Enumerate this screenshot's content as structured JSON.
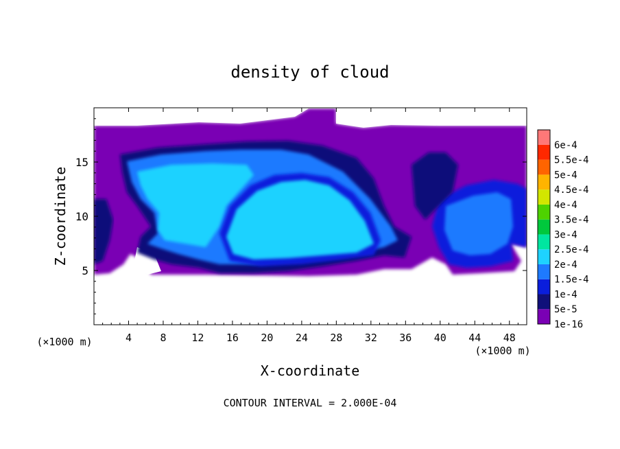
{
  "chart_data": {
    "type": "heatmap",
    "title": "density of cloud",
    "xlabel": "X-coordinate",
    "ylabel": "Z-coordinate",
    "x_unit_label_left": "(×1000 m)",
    "x_unit_label_right": "(×1000 m)",
    "xlim": [
      0,
      50
    ],
    "ylim": [
      0,
      20
    ],
    "x_ticks": [
      4,
      8,
      12,
      16,
      20,
      24,
      28,
      32,
      36,
      40,
      44,
      48
    ],
    "y_ticks": [
      5,
      10,
      15
    ],
    "footer": "CONTOUR INTERVAL = 2.000E-04",
    "colorbar": {
      "levels": [
        {
          "label": "1e-16",
          "color": "#7a00b4"
        },
        {
          "label": "5e-5",
          "color": "#10107a"
        },
        {
          "label": "1e-4",
          "color": "#0a1edc"
        },
        {
          "label": "1.5e-4",
          "color": "#1e7aff"
        },
        {
          "label": "2e-4",
          "color": "#1ed2ff"
        },
        {
          "label": "2.5e-4",
          "color": "#00e6a0"
        },
        {
          "label": "3e-4",
          "color": "#00c83c"
        },
        {
          "label": "3.5e-4",
          "color": "#4ed200"
        },
        {
          "label": "4e-4",
          "color": "#d2e600"
        },
        {
          "label": "4.5e-4",
          "color": "#ffb400"
        },
        {
          "label": "5e-4",
          "color": "#ff6400"
        },
        {
          "label": "5.5e-4",
          "color": "#ff2800"
        },
        {
          "label": "6e-4",
          "color": "#ff7878"
        }
      ]
    },
    "regions": [
      {
        "name": "cloud-envelope",
        "level": "1e-16"
      },
      {
        "name": "left-cloud-outer",
        "level": "5e-5"
      },
      {
        "name": "left-cloud-inner",
        "level": "1.5e-4"
      },
      {
        "name": "left-cloud-core",
        "level": "2e-4"
      },
      {
        "name": "central-dome-outer",
        "level": "1e-4"
      },
      {
        "name": "central-dome-core",
        "level": "2e-4"
      },
      {
        "name": "right-cloud-outer",
        "level": "1e-4"
      },
      {
        "name": "right-cloud-core",
        "level": "1.5e-4"
      }
    ]
  }
}
